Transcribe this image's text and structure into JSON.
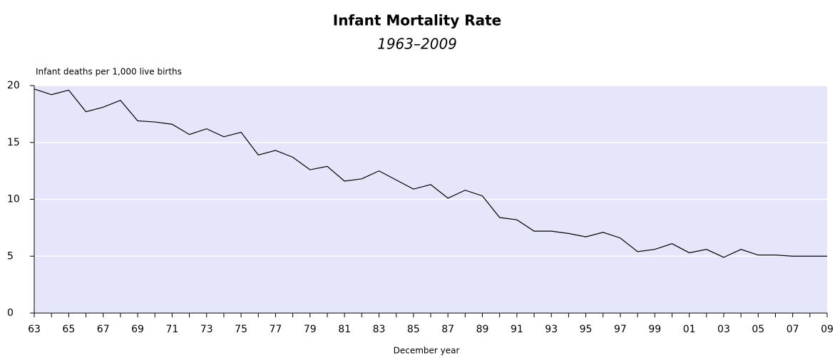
{
  "chart_data": {
    "type": "line",
    "title": "Infant Mortality Rate",
    "subtitle": "1963–2009",
    "y_label": "Infant deaths per 1,000 live births",
    "x_label": "December year",
    "categories": [
      "63",
      null,
      "65",
      null,
      "67",
      null,
      "69",
      null,
      "71",
      null,
      "73",
      null,
      "75",
      null,
      "77",
      null,
      "79",
      null,
      "81",
      null,
      "83",
      null,
      "85",
      null,
      "87",
      null,
      "89",
      null,
      "91",
      null,
      "93",
      null,
      "95",
      null,
      "97",
      null,
      "99",
      null,
      "01",
      null,
      "03",
      null,
      "05",
      null,
      "07",
      null,
      "09"
    ],
    "values": [
      19.7,
      19.2,
      19.6,
      17.7,
      18.1,
      18.7,
      16.9,
      16.8,
      16.6,
      15.7,
      16.2,
      15.5,
      15.9,
      13.9,
      14.3,
      13.7,
      12.6,
      12.9,
      11.6,
      11.8,
      12.5,
      11.7,
      10.9,
      11.3,
      10.1,
      10.8,
      10.3,
      8.4,
      8.2,
      7.2,
      7.2,
      7.0,
      6.7,
      7.1,
      6.6,
      5.4,
      5.6,
      6.1,
      5.3,
      5.6,
      4.9,
      5.6,
      5.1,
      5.1,
      5.0,
      5.0,
      5.0
    ],
    "color": "#000000",
    "ylim": [
      0,
      20
    ],
    "yticks": [
      0,
      5,
      10,
      15,
      20
    ],
    "grid": true
  }
}
